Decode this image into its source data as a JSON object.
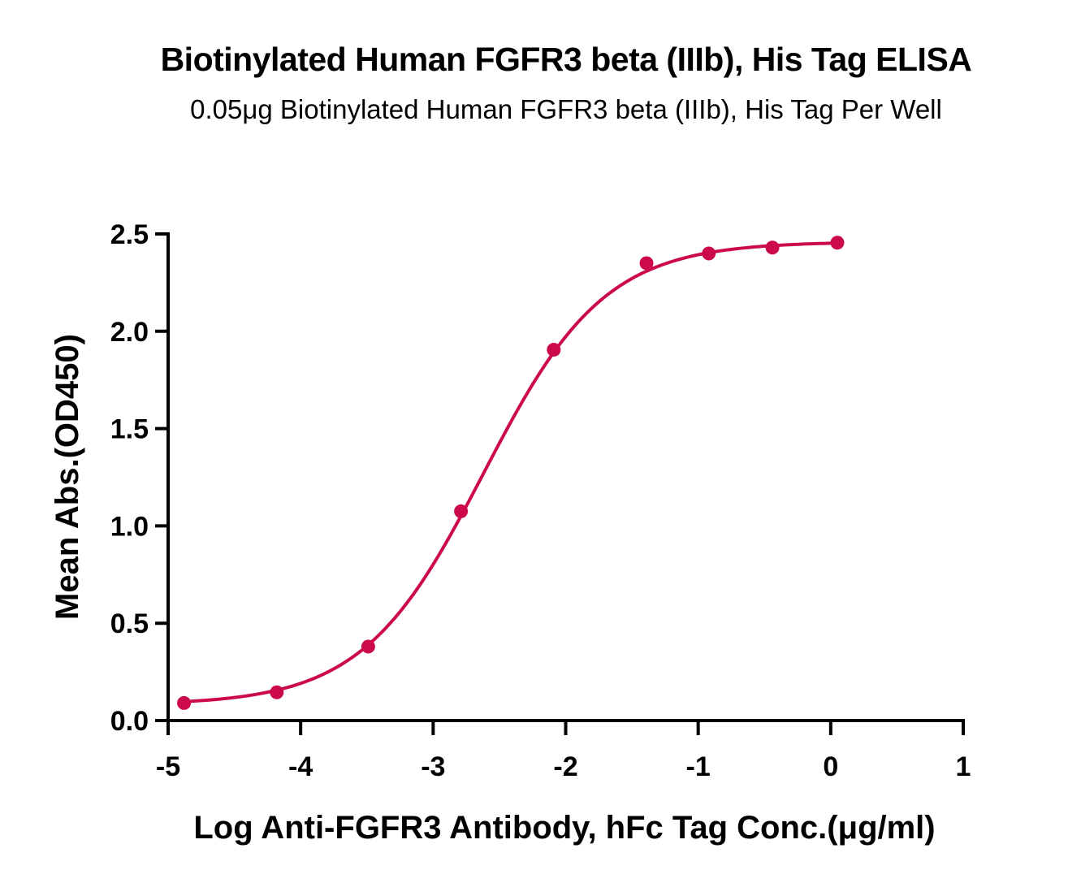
{
  "chart_data": {
    "type": "scatter",
    "title": "Biotinylated Human FGFR3 beta (IIIb), His Tag ELISA",
    "subtitle": "0.05μg Biotinylated Human FGFR3 beta (IIIb), His Tag Per Well",
    "xlabel": "Log  Anti-FGFR3 Antibody, hFc Tag Conc.(μg/ml)",
    "ylabel": "Mean Abs.(OD450)",
    "xlim": [
      -5,
      1
    ],
    "ylim": [
      0,
      2.5
    ],
    "x_ticks": [
      -5,
      -4,
      -3,
      -2,
      -1,
      0,
      1
    ],
    "x_tick_labels": [
      "-5",
      "-4",
      "-3",
      "-2",
      "-1",
      "0",
      "1"
    ],
    "y_ticks": [
      0,
      0.5,
      1,
      1.5,
      2,
      2.5
    ],
    "y_tick_labels": [
      "0.0",
      "0.5",
      "1.0",
      "1.5",
      "2.0",
      "2.5"
    ],
    "grid": false,
    "color": "#cc0a4a",
    "series": [
      {
        "x": [
          -4.88,
          -4.18,
          -3.49,
          -2.79,
          -2.09,
          -1.39,
          -0.92,
          -0.44,
          0.05
        ],
        "y": [
          0.09,
          0.145,
          0.38,
          1.075,
          1.905,
          2.35,
          2.4,
          2.43,
          2.455
        ],
        "fit": "4PL"
      }
    ]
  }
}
